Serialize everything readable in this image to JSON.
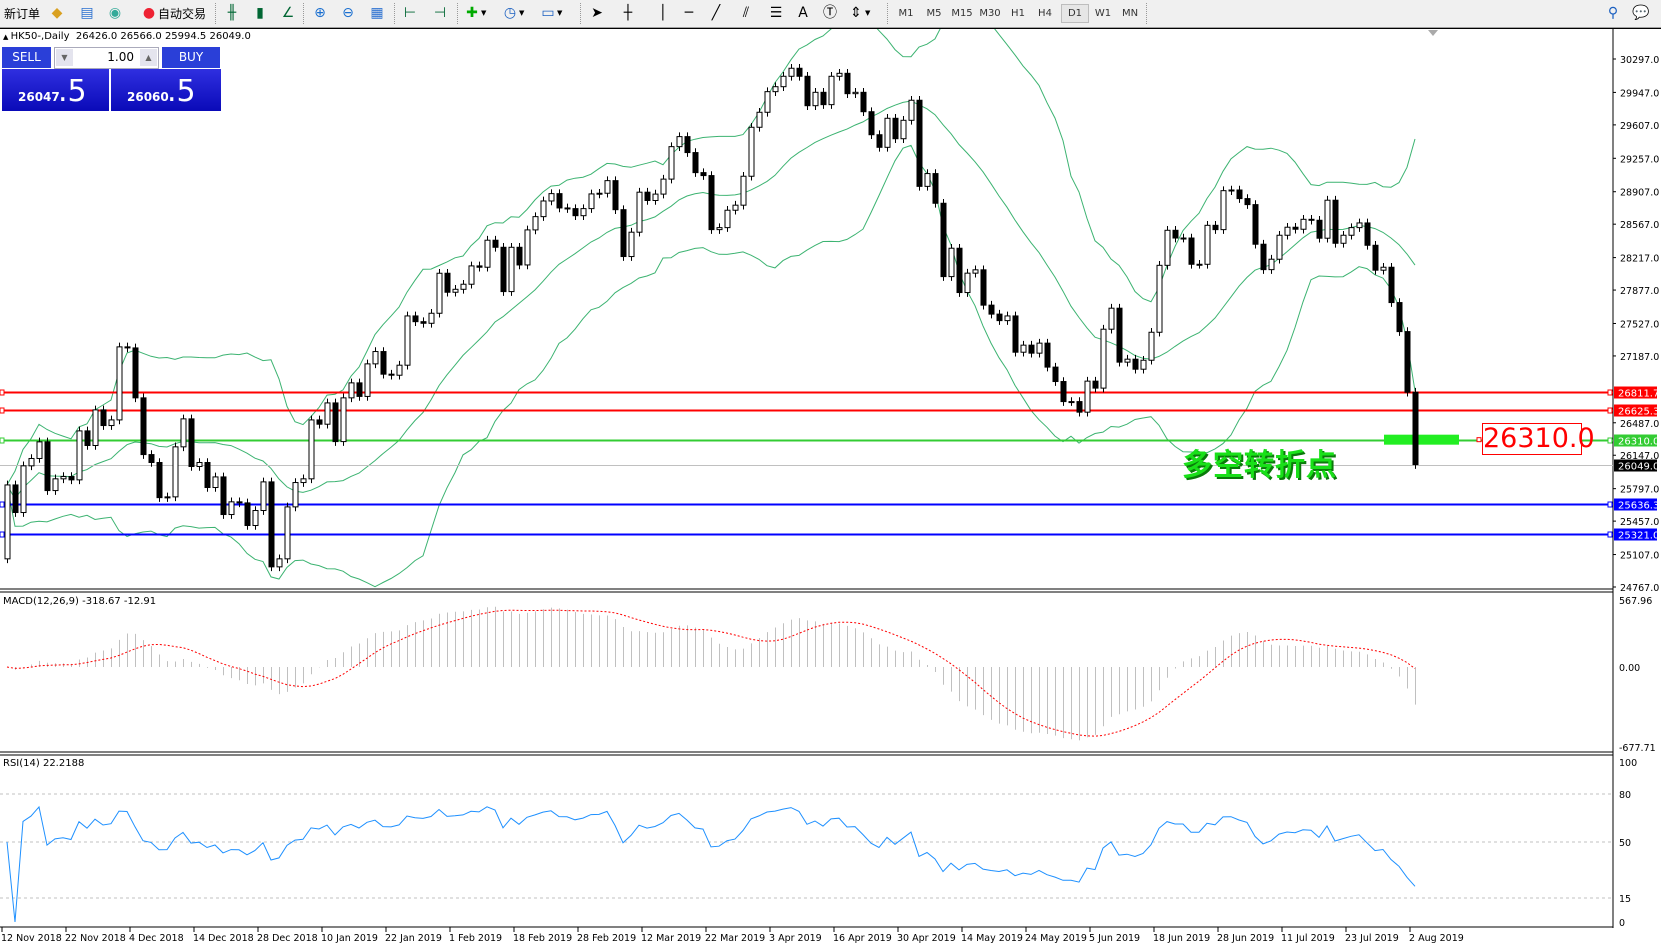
{
  "toolbar": {
    "new_order": "新订单",
    "auto_trading": "自动交易",
    "icons": [
      "expert-icon",
      "market-watch-icon",
      "signals-icon",
      "auto-trading-icon",
      "bar-chart-icon",
      "candlestick-icon",
      "line-chart-icon",
      "zoom-in-icon",
      "zoom-out-icon",
      "tile-windows-icon",
      "chart-shift-icon",
      "auto-scroll-icon",
      "indicators-icon",
      "periods-icon",
      "templates-icon",
      "cursor-icon",
      "crosshair-icon",
      "vertical-line-icon",
      "horizontal-line-icon",
      "trendline-icon",
      "channel-icon",
      "fibonacci-icon",
      "text-icon",
      "text-label-icon",
      "arrows-icon",
      "search-icon",
      "chat-icon"
    ],
    "timeframes": [
      "M1",
      "M5",
      "M15",
      "M30",
      "H1",
      "H4",
      "D1",
      "W1",
      "MN"
    ],
    "active_timeframe": "D1"
  },
  "chart_header": {
    "symbol": "HK50-,Daily",
    "ohlc": "26426.0 26566.0 25994.5 26049.0"
  },
  "trade_panel": {
    "sell_label": "SELL",
    "buy_label": "BUY",
    "lot": "1.00",
    "sell_main": "26047",
    "sell_big": ".5",
    "buy_main": "26060",
    "buy_big": ".5"
  },
  "annotation": {
    "text": "多空转折点",
    "level_label": "26310.0"
  },
  "colors": {
    "bands": "#3cb371",
    "macd_hist": "#c0c0c0",
    "macd_signal": "#ff0000",
    "rsi": "#1e90ff",
    "resistance": "#ff0000",
    "pivot": "#33cc33",
    "support": "#0000ff",
    "bid": "#c0c0c0"
  },
  "chart_data": {
    "type": "candlestick",
    "first_open": 25062,
    "close": [
      25836,
      25547,
      26036,
      26113,
      26287,
      25777,
      25900,
      25924,
      25889,
      26402,
      26249,
      26622,
      26458,
      26517,
      27282,
      27271,
      26748,
      26154,
      26071,
      25703,
      25711,
      26235,
      26528,
      26029,
      26071,
      25809,
      25920,
      25526,
      25659,
      25648,
      25411,
      25568,
      25868,
      24978,
      25062,
      25606,
      25861,
      25900,
      26517,
      26472,
      26695,
      26290,
      26748,
      26905,
      26763,
      27104,
      27233,
      26996,
      26985,
      27090,
      27606,
      27546,
      27529,
      27634,
      28053,
      27854,
      27885,
      27938,
      28130,
      28116,
      28399,
      28325,
      27861,
      28325,
      28140,
      28507,
      28646,
      28810,
      28887,
      28737,
      28730,
      28656,
      28730,
      28884,
      28891,
      29023,
      28719,
      28228,
      28483,
      28902,
      28815,
      28882,
      29039,
      29379,
      29484,
      29317,
      29107,
      29076,
      28510,
      28531,
      28713,
      28766,
      29069,
      29582,
      29739,
      29955,
      30007,
      30116,
      30200,
      30116,
      29808,
      29948,
      29819,
      30116,
      30147,
      29934,
      29948,
      29745,
      29504,
      29372,
      29676,
      29462,
      29655,
      29865,
      28963,
      29097,
      28786,
      28018,
      28315,
      27851,
      28054,
      28089,
      27719,
      27625,
      27557,
      27606,
      27226,
      27300,
      27216,
      27321,
      27070,
      26919,
      26709,
      26709,
      26598,
      26923,
      26850,
      27467,
      27687,
      27122,
      27153,
      27048,
      27142,
      27435,
      28136,
      28503,
      28422,
      28422,
      28147,
      28147,
      28555,
      28510,
      28918,
      28925,
      28835,
      28772,
      28357,
      28091,
      28200,
      28451,
      28535,
      28514,
      28618,
      28608,
      28420,
      28818,
      28367,
      28451,
      28531,
      28580,
      28346,
      28085,
      28116,
      27746,
      27442,
      26807,
      26049
    ],
    "y_range": [
      24767,
      30297
    ],
    "y_ticks": [
      "30297.0",
      "29947.0",
      "29607.0",
      "29257.0",
      "28907.0",
      "28567.0",
      "28217.0",
      "27877.0",
      "27527.0",
      "27187.0",
      "26487.0",
      "26147.0",
      "25797.0",
      "25457.0",
      "25107.0",
      "24767.0"
    ],
    "levels": [
      {
        "value": 26811.7,
        "label": "26811.7",
        "kind": "resistance"
      },
      {
        "value": 26625.3,
        "label": "26625.3",
        "kind": "resistance"
      },
      {
        "value": 26310.0,
        "label": "26310.0",
        "kind": "pivot"
      },
      {
        "value": 26049.0,
        "label": "26049.0",
        "kind": "bid"
      },
      {
        "value": 25636.3,
        "label": "25636.3",
        "kind": "support"
      },
      {
        "value": 25321.0,
        "label": "25321.0",
        "kind": "support"
      }
    ],
    "x_labels": [
      "12 Nov 2018",
      "22 Nov 2018",
      "4 Dec 2018",
      "14 Dec 2018",
      "28 Dec 2018",
      "10 Jan 2019",
      "22 Jan 2019",
      "1 Feb 2019",
      "18 Feb 2019",
      "28 Feb 2019",
      "12 Mar 2019",
      "22 Mar 2019",
      "3 Apr 2019",
      "16 Apr 2019",
      "30 Apr 2019",
      "14 May 2019",
      "24 May 2019",
      "5 Jun 2019",
      "18 Jun 2019",
      "28 Jun 2019",
      "11 Jul 2019",
      "23 Jul 2019",
      "2 Aug 2019"
    ],
    "bollinger": {
      "period": 20,
      "deviation": 2
    },
    "macd": {
      "label": "MACD(12,26,9) -318.67 -12.91",
      "fast": 12,
      "slow": 26,
      "signal": 9,
      "range": [
        -677.71,
        567.96
      ],
      "ticks": [
        "567.96",
        "0.00",
        "-677.71"
      ]
    },
    "rsi": {
      "label": "RSI(14) 22.2188",
      "period": 14,
      "levels": [
        80,
        50,
        15
      ],
      "ticks": [
        "100",
        "80",
        "50",
        "15",
        "0"
      ]
    }
  }
}
